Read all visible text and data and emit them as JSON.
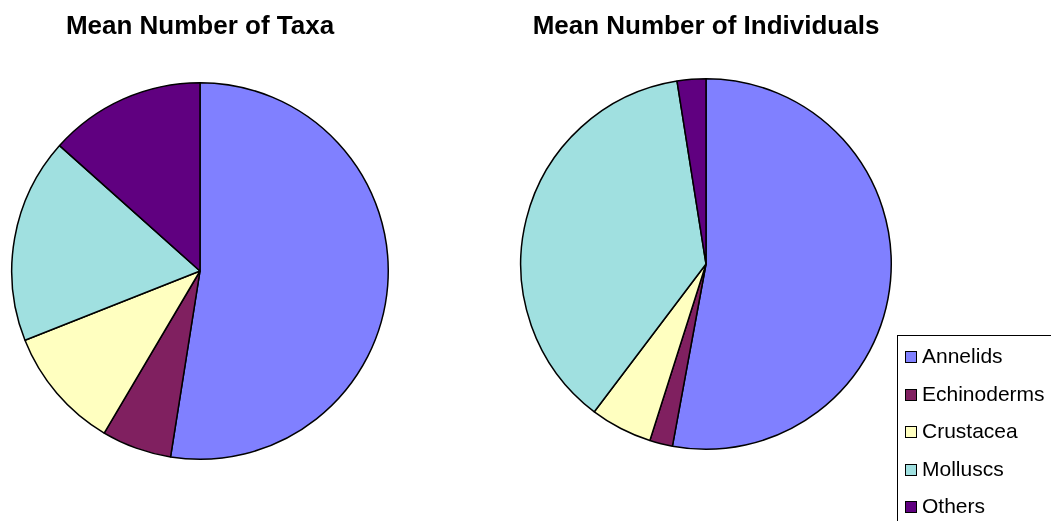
{
  "chart_data": [
    {
      "type": "pie",
      "title": "Mean Number of Taxa",
      "categories": [
        null,
        null,
        null,
        null,
        null
      ],
      "values": [
        52.5,
        6.0,
        10.5,
        17.6,
        13.4
      ],
      "colors": [
        "#8080ff",
        "#802060",
        "#ffffc0",
        "#a0e0e0",
        "#600080"
      ]
    },
    {
      "type": "pie",
      "title": "Mean Number of Individuals",
      "categories": [
        "Annelids",
        "Echinoderms",
        "Crustacea",
        "Molluscs",
        "Others"
      ],
      "values": [
        52.9,
        2.0,
        5.4,
        37.2,
        2.5
      ],
      "colors": [
        "#8080ff",
        "#802060",
        "#ffffc0",
        "#a0e0e0",
        "#600080"
      ],
      "legend": "bottom right"
    }
  ]
}
